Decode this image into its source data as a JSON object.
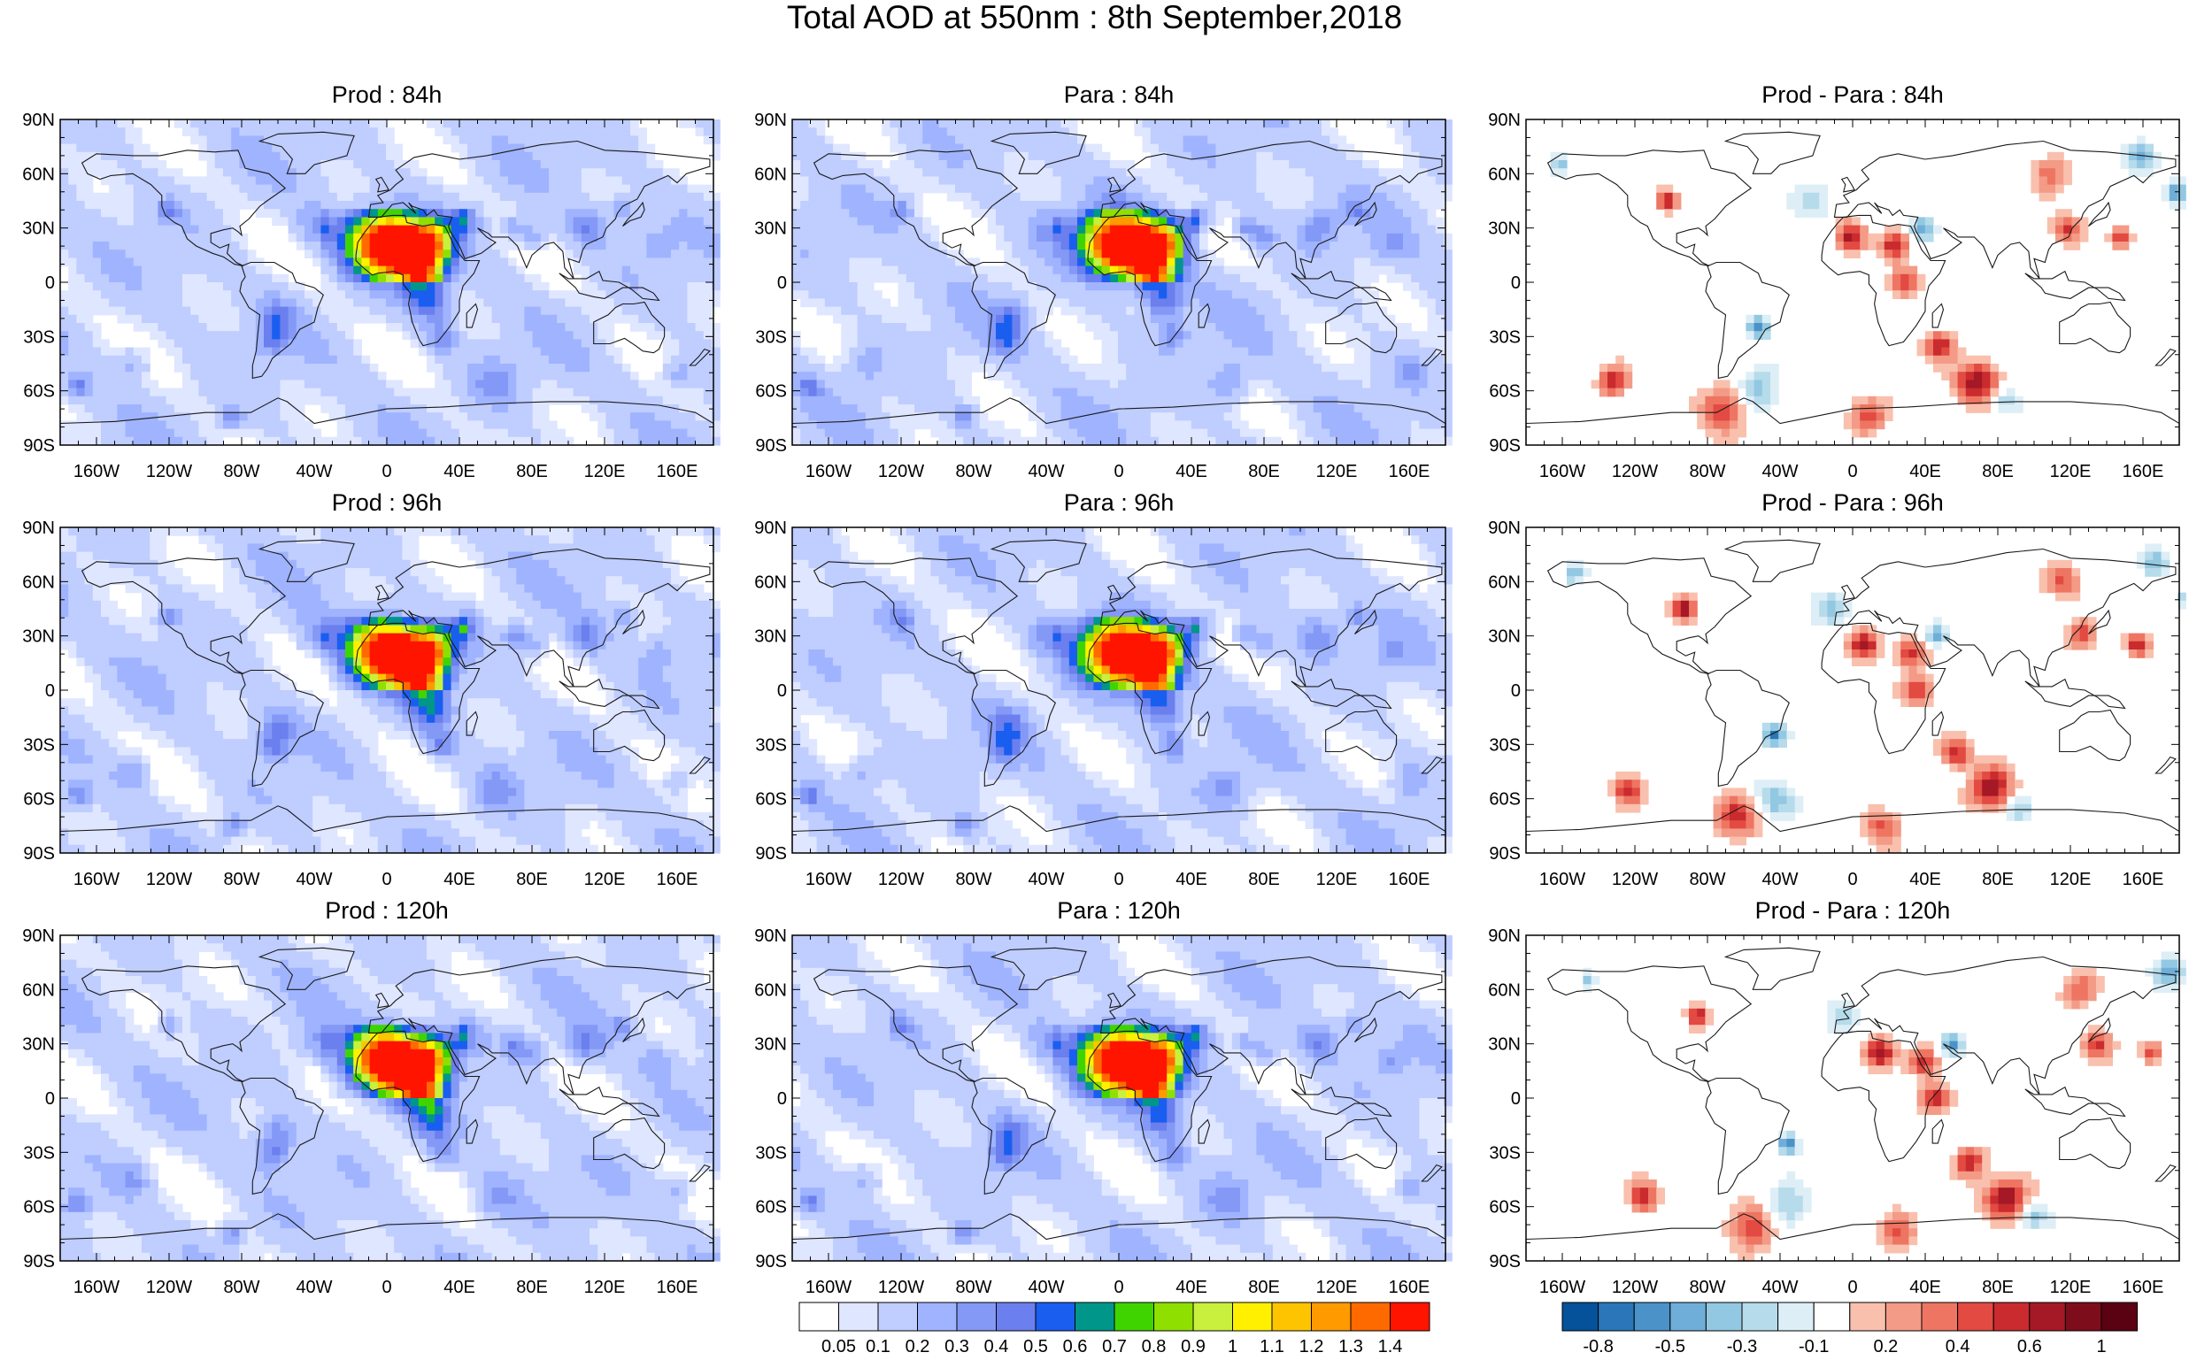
{
  "title": "Total AOD at 550nm : 8th September,2018",
  "lat_labels": [
    "90N",
    "60N",
    "30N",
    "0",
    "30S",
    "60S",
    "90S"
  ],
  "lon_labels": [
    "160W",
    "120W",
    "80W",
    "40W",
    "0",
    "40E",
    "80E",
    "120E",
    "160E"
  ],
  "panels": [
    {
      "title": "Prod : 84h",
      "kind": "aod"
    },
    {
      "title": "Para : 84h",
      "kind": "aod"
    },
    {
      "title": "Prod - Para : 84h",
      "kind": "diff"
    },
    {
      "title": "Prod : 96h",
      "kind": "aod"
    },
    {
      "title": "Para : 96h",
      "kind": "aod"
    },
    {
      "title": "Prod - Para : 96h",
      "kind": "diff"
    },
    {
      "title": "Prod : 120h",
      "kind": "aod"
    },
    {
      "title": "Para : 120h",
      "kind": "aod"
    },
    {
      "title": "Prod - Para : 120h",
      "kind": "diff"
    }
  ],
  "aod_colorbar": {
    "labels": [
      "0.05",
      "0.1",
      "0.2",
      "0.3",
      "0.4",
      "0.5",
      "0.6",
      "0.7",
      "0.8",
      "0.9",
      "1",
      "1.1",
      "1.2",
      "1.3",
      "1.4"
    ],
    "colors": [
      "#ffffff",
      "#dfe6ff",
      "#bfcdff",
      "#a0b3ff",
      "#8499f6",
      "#6b7fee",
      "#1a5ef0",
      "#00968a",
      "#3fd400",
      "#8fe000",
      "#c8f03c",
      "#fff000",
      "#ffc400",
      "#ff9a00",
      "#ff6a00",
      "#ff1400"
    ]
  },
  "diff_colorbar": {
    "labels": [
      "-0.8",
      "-0.5",
      "-0.3",
      "-0.1",
      "0.2",
      "0.4",
      "0.6",
      "1"
    ],
    "colors": [
      "#05519a",
      "#2a76b8",
      "#4b92c9",
      "#6faed8",
      "#93c8e2",
      "#b6dbeb",
      "#ddeef6",
      "#ffffff",
      "#f9c0ae",
      "#f39b86",
      "#ee7562",
      "#e24a42",
      "#c92b2e",
      "#a51825",
      "#7e0d1c",
      "#5a0212"
    ]
  }
}
